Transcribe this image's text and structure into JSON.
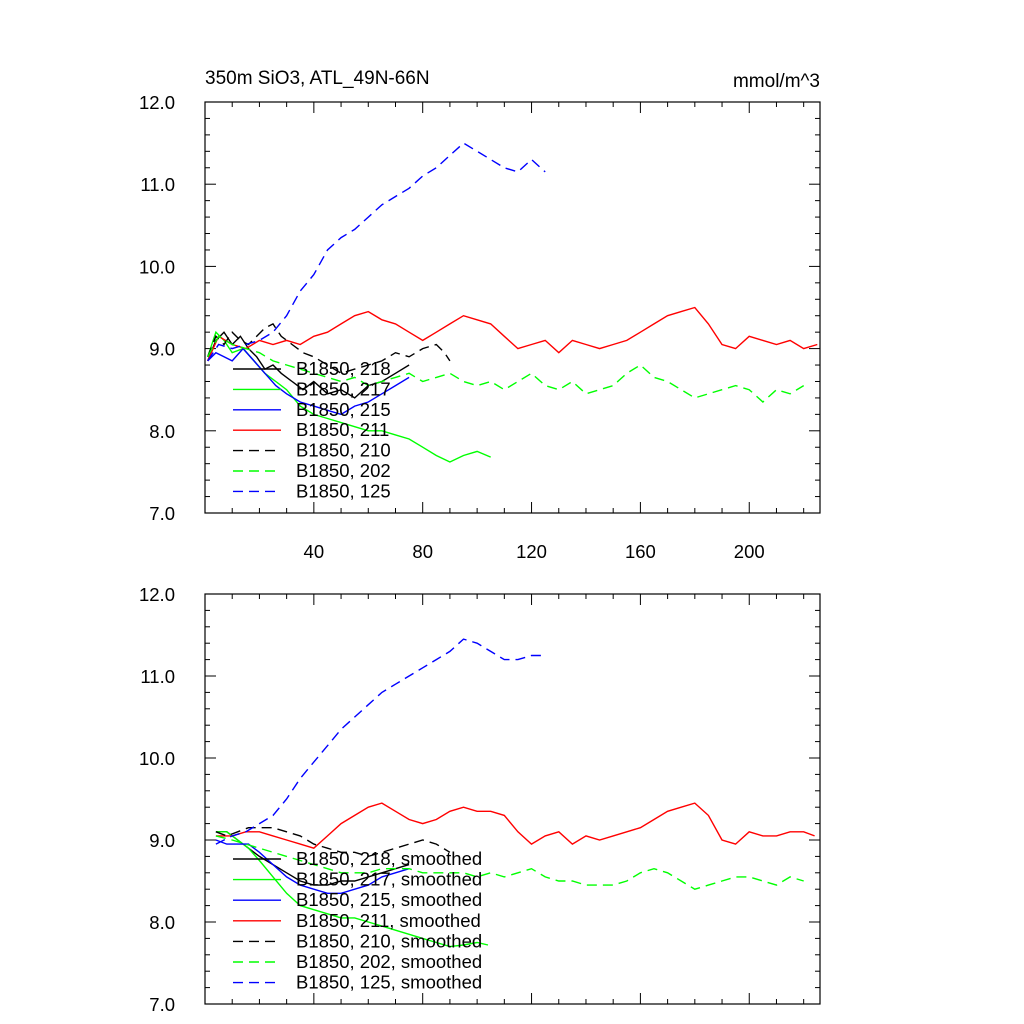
{
  "chart_data": [
    {
      "type": "line",
      "title": "350m SiO3, ATL_49N-66N",
      "units": "mmol/m^3",
      "xlim": [
        0,
        226
      ],
      "ylim": [
        7.0,
        12.0
      ],
      "yticks": [
        7.0,
        8.0,
        9.0,
        10.0,
        11.0,
        12.0
      ],
      "ytick_labels": [
        "7.0",
        "8.0",
        "9.0",
        "10.0",
        "11.0",
        "12.0"
      ],
      "xticks": [
        40,
        80,
        120,
        160,
        200
      ],
      "xtick_labels": [
        "40",
        "80",
        "120",
        "160",
        "200"
      ],
      "legend_position": "lower-left",
      "series": [
        {
          "name": "B1850, 218",
          "color": "#000000",
          "dash": "solid",
          "x": [
            1,
            4,
            7,
            10,
            13,
            16,
            19,
            22,
            25,
            28,
            32,
            36,
            40,
            45,
            50,
            55,
            60,
            65,
            70,
            75
          ],
          "y": [
            8.85,
            9.1,
            9.2,
            9.05,
            9.15,
            9.0,
            8.9,
            8.75,
            8.8,
            8.7,
            8.6,
            8.5,
            8.6,
            8.45,
            8.5,
            8.4,
            8.55,
            8.6,
            8.7,
            8.8
          ]
        },
        {
          "name": "B1850, 217",
          "color": "#00ff00",
          "dash": "solid",
          "x": [
            1,
            4,
            7,
            10,
            14,
            18,
            22,
            26,
            30,
            35,
            40,
            45,
            50,
            55,
            60,
            65,
            70,
            75,
            80,
            85,
            90,
            95,
            100,
            105
          ],
          "y": [
            8.9,
            9.2,
            9.1,
            8.95,
            9.0,
            8.85,
            8.7,
            8.6,
            8.5,
            8.3,
            8.2,
            8.15,
            8.1,
            8.05,
            8.0,
            8.0,
            7.95,
            7.9,
            7.8,
            7.7,
            7.62,
            7.7,
            7.75,
            7.68
          ]
        },
        {
          "name": "B1850, 215",
          "color": "#0000ff",
          "dash": "solid",
          "x": [
            1,
            4,
            7,
            10,
            14,
            18,
            22,
            26,
            30,
            35,
            40,
            45,
            50,
            55,
            60,
            65,
            70,
            75
          ],
          "y": [
            8.85,
            8.95,
            8.9,
            8.85,
            9.0,
            8.85,
            8.7,
            8.55,
            8.45,
            8.35,
            8.3,
            8.25,
            8.2,
            8.3,
            8.35,
            8.45,
            8.55,
            8.65
          ]
        },
        {
          "name": "B1850, 211",
          "color": "#ff0000",
          "dash": "solid",
          "x": [
            1,
            5,
            10,
            15,
            20,
            25,
            30,
            35,
            40,
            45,
            50,
            55,
            60,
            65,
            70,
            75,
            80,
            85,
            90,
            95,
            100,
            105,
            110,
            115,
            120,
            125,
            130,
            135,
            140,
            145,
            150,
            155,
            160,
            165,
            170,
            175,
            180,
            185,
            190,
            195,
            200,
            205,
            210,
            215,
            220,
            225
          ],
          "y": [
            8.85,
            9.15,
            9.05,
            9.0,
            9.1,
            9.05,
            9.1,
            9.05,
            9.15,
            9.2,
            9.3,
            9.4,
            9.45,
            9.35,
            9.3,
            9.2,
            9.1,
            9.2,
            9.3,
            9.4,
            9.35,
            9.3,
            9.15,
            9.0,
            9.05,
            9.1,
            8.95,
            9.1,
            9.05,
            9.0,
            9.05,
            9.1,
            9.2,
            9.3,
            9.4,
            9.45,
            9.5,
            9.3,
            9.05,
            9.0,
            9.15,
            9.1,
            9.05,
            9.1,
            9.0,
            9.05
          ]
        },
        {
          "name": "B1850, 210",
          "color": "#000000",
          "dash": "dashed",
          "x": [
            1,
            4,
            7,
            10,
            13,
            16,
            19,
            22,
            25,
            28,
            32,
            36,
            40,
            45,
            50,
            55,
            60,
            65,
            70,
            75,
            80,
            85,
            88,
            90
          ],
          "y": [
            8.9,
            9.15,
            9.05,
            9.2,
            9.1,
            9.05,
            9.15,
            9.25,
            9.3,
            9.15,
            9.05,
            8.95,
            8.9,
            8.8,
            8.7,
            8.75,
            8.8,
            8.85,
            8.95,
            8.9,
            9.0,
            9.05,
            8.95,
            8.85
          ]
        },
        {
          "name": "B1850, 202",
          "color": "#00ff00",
          "dash": "dashed",
          "x": [
            1,
            5,
            10,
            15,
            20,
            25,
            30,
            35,
            40,
            45,
            50,
            55,
            60,
            65,
            70,
            75,
            80,
            85,
            90,
            95,
            100,
            105,
            110,
            115,
            120,
            125,
            130,
            135,
            140,
            145,
            150,
            155,
            160,
            165,
            170,
            175,
            180,
            185,
            190,
            195,
            200,
            205,
            210,
            215,
            220
          ],
          "y": [
            8.9,
            9.15,
            9.05,
            9.0,
            8.95,
            8.85,
            8.8,
            8.75,
            8.7,
            8.65,
            8.6,
            8.65,
            8.55,
            8.6,
            8.65,
            8.7,
            8.6,
            8.65,
            8.7,
            8.6,
            8.55,
            8.6,
            8.5,
            8.6,
            8.7,
            8.55,
            8.5,
            8.6,
            8.45,
            8.5,
            8.55,
            8.7,
            8.8,
            8.65,
            8.6,
            8.5,
            8.4,
            8.45,
            8.5,
            8.55,
            8.5,
            8.35,
            8.5,
            8.45,
            8.55
          ]
        },
        {
          "name": "B1850, 125",
          "color": "#0000ff",
          "dash": "dashed",
          "x": [
            1,
            5,
            10,
            15,
            20,
            25,
            30,
            35,
            40,
            45,
            50,
            55,
            60,
            65,
            70,
            75,
            80,
            85,
            90,
            95,
            100,
            105,
            110,
            115,
            120,
            125
          ],
          "y": [
            8.85,
            9.05,
            9.0,
            9.05,
            9.1,
            9.2,
            9.4,
            9.7,
            9.9,
            10.2,
            10.35,
            10.45,
            10.6,
            10.75,
            10.85,
            10.95,
            11.1,
            11.2,
            11.35,
            11.5,
            11.4,
            11.3,
            11.2,
            11.15,
            11.3,
            11.15
          ]
        }
      ]
    },
    {
      "type": "line",
      "xlim": [
        0,
        226
      ],
      "ylim": [
        7.0,
        12.0
      ],
      "yticks": [
        7.0,
        8.0,
        9.0,
        10.0,
        11.0,
        12.0
      ],
      "ytick_labels": [
        "7.0",
        "8.0",
        "9.0",
        "10.0",
        "11.0",
        "12.0"
      ],
      "legend_position": "lower-left",
      "series": [
        {
          "name": "B1850, 218, smoothed",
          "color": "#000000",
          "dash": "solid",
          "x": [
            4,
            8,
            12,
            16,
            20,
            25,
            30,
            35,
            40,
            45,
            50,
            55,
            60,
            65,
            70,
            75
          ],
          "y": [
            9.1,
            9.1,
            9.0,
            8.9,
            8.8,
            8.7,
            8.6,
            8.5,
            8.45,
            8.45,
            8.5,
            8.5,
            8.55,
            8.6,
            8.65,
            8.7
          ]
        },
        {
          "name": "B1850, 217, smoothed",
          "color": "#00ff00",
          "dash": "solid",
          "x": [
            4,
            8,
            12,
            16,
            20,
            25,
            30,
            35,
            40,
            45,
            50,
            55,
            60,
            65,
            70,
            75,
            80,
            85,
            90,
            95,
            100,
            104
          ],
          "y": [
            9.1,
            9.1,
            9.0,
            8.9,
            8.75,
            8.55,
            8.35,
            8.2,
            8.15,
            8.1,
            8.05,
            8.05,
            8.0,
            7.95,
            7.9,
            7.85,
            7.8,
            7.75,
            7.7,
            7.72,
            7.75,
            7.72
          ]
        },
        {
          "name": "B1850, 215, smoothed",
          "color": "#0000ff",
          "dash": "solid",
          "x": [
            4,
            8,
            12,
            16,
            20,
            25,
            30,
            35,
            40,
            45,
            50,
            55,
            60,
            65,
            70,
            75
          ],
          "y": [
            9.0,
            8.95,
            8.95,
            8.95,
            8.85,
            8.7,
            8.55,
            8.45,
            8.4,
            8.35,
            8.35,
            8.4,
            8.45,
            8.55,
            8.6,
            8.65
          ]
        },
        {
          "name": "B1850, 211, smoothed",
          "color": "#ff0000",
          "dash": "solid",
          "x": [
            4,
            10,
            15,
            20,
            25,
            30,
            35,
            40,
            45,
            50,
            55,
            60,
            65,
            70,
            75,
            80,
            85,
            90,
            95,
            100,
            105,
            110,
            115,
            120,
            125,
            130,
            135,
            140,
            145,
            150,
            155,
            160,
            165,
            170,
            175,
            180,
            185,
            190,
            195,
            200,
            205,
            210,
            215,
            220,
            224
          ],
          "y": [
            9.05,
            9.05,
            9.1,
            9.1,
            9.05,
            9.0,
            8.95,
            8.9,
            9.05,
            9.2,
            9.3,
            9.4,
            9.45,
            9.35,
            9.25,
            9.2,
            9.25,
            9.35,
            9.4,
            9.35,
            9.35,
            9.3,
            9.1,
            8.95,
            9.05,
            9.1,
            8.95,
            9.05,
            9.0,
            9.05,
            9.1,
            9.15,
            9.25,
            9.35,
            9.4,
            9.45,
            9.3,
            9.0,
            8.95,
            9.1,
            9.05,
            9.05,
            9.1,
            9.1,
            9.05
          ]
        },
        {
          "name": "B1850, 210, smoothed",
          "color": "#000000",
          "dash": "dashed",
          "x": [
            4,
            8,
            12,
            16,
            20,
            25,
            30,
            35,
            40,
            45,
            50,
            55,
            60,
            65,
            70,
            75,
            80,
            85,
            90
          ],
          "y": [
            9.1,
            9.05,
            9.1,
            9.15,
            9.15,
            9.15,
            9.1,
            9.05,
            8.95,
            8.9,
            8.85,
            8.85,
            8.8,
            8.85,
            8.9,
            8.95,
            9.0,
            8.95,
            8.85
          ]
        },
        {
          "name": "B1850, 202, smoothed",
          "color": "#00ff00",
          "dash": "dashed",
          "x": [
            4,
            10,
            15,
            20,
            25,
            30,
            35,
            40,
            45,
            50,
            55,
            60,
            65,
            70,
            75,
            80,
            85,
            90,
            95,
            100,
            105,
            110,
            115,
            120,
            125,
            130,
            135,
            140,
            145,
            150,
            155,
            160,
            165,
            170,
            175,
            180,
            185,
            190,
            195,
            200,
            205,
            210,
            215,
            220
          ],
          "y": [
            9.05,
            9.0,
            8.95,
            8.9,
            8.85,
            8.8,
            8.75,
            8.7,
            8.65,
            8.6,
            8.6,
            8.6,
            8.65,
            8.65,
            8.65,
            8.6,
            8.6,
            8.6,
            8.6,
            8.55,
            8.6,
            8.55,
            8.6,
            8.65,
            8.55,
            8.5,
            8.5,
            8.45,
            8.45,
            8.45,
            8.5,
            8.6,
            8.65,
            8.6,
            8.5,
            8.4,
            8.45,
            8.5,
            8.55,
            8.55,
            8.5,
            8.45,
            8.55,
            8.5
          ]
        },
        {
          "name": "B1850, 125, smoothed",
          "color": "#0000ff",
          "dash": "dashed",
          "x": [
            4,
            10,
            15,
            20,
            25,
            30,
            35,
            40,
            45,
            50,
            55,
            60,
            65,
            70,
            75,
            80,
            85,
            90,
            95,
            100,
            105,
            110,
            115,
            120,
            124
          ],
          "y": [
            8.95,
            9.05,
            9.1,
            9.2,
            9.3,
            9.5,
            9.75,
            9.95,
            10.15,
            10.35,
            10.5,
            10.65,
            10.8,
            10.9,
            11.0,
            11.1,
            11.2,
            11.3,
            11.45,
            11.4,
            11.3,
            11.2,
            11.2,
            11.25,
            11.25
          ]
        }
      ]
    }
  ]
}
